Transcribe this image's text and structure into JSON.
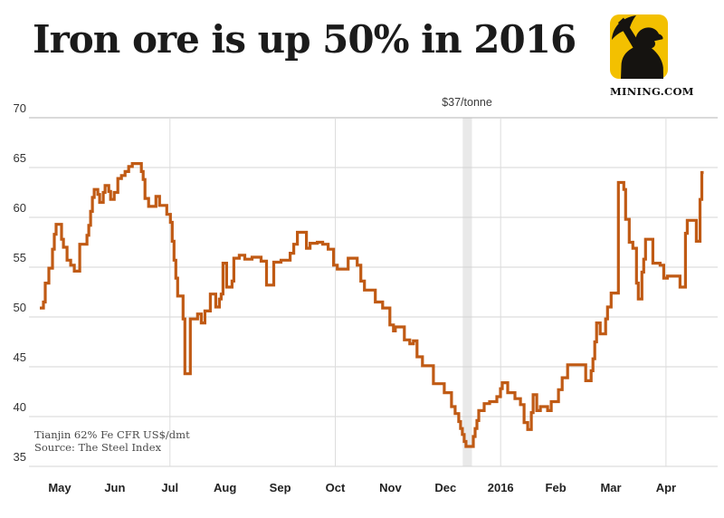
{
  "header": {
    "title": "Iron ore is up 50% in 2016",
    "logo_caption": "MINING.COM",
    "logo_bg_color": "#f3c000"
  },
  "chart_data": {
    "type": "line",
    "title": "Iron ore is up 50% in 2016",
    "series_name": "Tianjin 62% Fe CFR US$/dmt",
    "ylabel": "US$/dmt",
    "ylim": [
      35,
      70
    ],
    "y_ticks": [
      70,
      65,
      60,
      55,
      50,
      45,
      40,
      35
    ],
    "x_start_date": "2015-04-20",
    "x_tick_labels": [
      "May",
      "Jun",
      "Jul",
      "Aug",
      "Sep",
      "Oct",
      "Nov",
      "Dec",
      "2016",
      "Feb",
      "Mar",
      "Apr"
    ],
    "quarter_gridline_ticks": [
      "Jul",
      "Oct",
      "2016",
      "Apr"
    ],
    "grid": true,
    "legend": "none",
    "line_color": "#c05a14",
    "band_color": "#e9e9e9",
    "annotation": {
      "text": "$37/tonne",
      "low_value": 37,
      "band_days": [
        233.2,
        238.3
      ]
    },
    "source_lines": [
      "Tianjin 62% Fe CFR US$/dmt",
      "Source: The Steel Index"
    ],
    "points": [
      [
        0,
        50.9
      ],
      [
        2,
        51.5
      ],
      [
        3,
        53.4
      ],
      [
        5,
        54.9
      ],
      [
        7,
        56.8
      ],
      [
        8,
        58.3
      ],
      [
        9,
        59.3
      ],
      [
        12,
        57.8
      ],
      [
        13,
        57.0
      ],
      [
        15,
        55.7
      ],
      [
        17,
        55.2
      ],
      [
        19,
        54.6
      ],
      [
        22,
        57.3
      ],
      [
        26,
        58.2
      ],
      [
        27,
        59.2
      ],
      [
        28,
        60.6
      ],
      [
        29,
        62.0
      ],
      [
        30,
        62.8
      ],
      [
        32,
        62.3
      ],
      [
        33,
        61.5
      ],
      [
        35,
        62.5
      ],
      [
        36,
        63.2
      ],
      [
        38,
        62.6
      ],
      [
        39,
        61.8
      ],
      [
        41,
        62.5
      ],
      [
        43,
        63.9
      ],
      [
        45,
        64.2
      ],
      [
        47,
        64.6
      ],
      [
        49,
        65.1
      ],
      [
        51,
        65.4
      ],
      [
        56,
        64.6
      ],
      [
        57,
        63.8
      ],
      [
        58,
        61.9
      ],
      [
        60,
        61.1
      ],
      [
        64,
        62.1
      ],
      [
        66,
        61.2
      ],
      [
        70,
        60.3
      ],
      [
        72,
        59.5
      ],
      [
        73,
        57.6
      ],
      [
        74,
        55.7
      ],
      [
        75,
        53.9
      ],
      [
        76,
        52.1
      ],
      [
        79,
        49.8
      ],
      [
        80,
        44.3
      ],
      [
        83,
        49.8
      ],
      [
        87,
        50.3
      ],
      [
        89,
        49.4
      ],
      [
        91,
        50.6
      ],
      [
        94,
        52.3
      ],
      [
        97,
        51.0
      ],
      [
        99,
        51.8
      ],
      [
        100,
        52.3
      ],
      [
        101,
        55.4
      ],
      [
        103,
        53.0
      ],
      [
        106,
        53.6
      ],
      [
        107,
        55.9
      ],
      [
        110,
        56.2
      ],
      [
        113,
        55.8
      ],
      [
        117,
        56.0
      ],
      [
        122,
        55.6
      ],
      [
        125,
        53.2
      ],
      [
        129,
        55.5
      ],
      [
        133,
        55.7
      ],
      [
        138,
        56.4
      ],
      [
        140,
        57.3
      ],
      [
        142,
        58.5
      ],
      [
        147,
        56.9
      ],
      [
        149,
        57.4
      ],
      [
        153,
        57.5
      ],
      [
        156,
        57.3
      ],
      [
        159,
        56.8
      ],
      [
        162,
        55.2
      ],
      [
        164,
        54.8
      ],
      [
        170,
        55.9
      ],
      [
        175,
        55.2
      ],
      [
        177,
        53.6
      ],
      [
        179,
        52.7
      ],
      [
        185,
        51.5
      ],
      [
        189,
        50.9
      ],
      [
        193,
        49.2
      ],
      [
        195,
        48.6
      ],
      [
        196,
        49.0
      ],
      [
        201,
        47.7
      ],
      [
        204,
        47.3
      ],
      [
        206,
        47.6
      ],
      [
        208,
        46.0
      ],
      [
        211,
        45.1
      ],
      [
        217,
        43.3
      ],
      [
        223,
        42.4
      ],
      [
        227,
        41.0
      ],
      [
        229,
        40.3
      ],
      [
        231,
        39.5
      ],
      [
        232,
        38.8
      ],
      [
        233,
        38.2
      ],
      [
        234,
        37.5
      ],
      [
        235,
        37.0
      ],
      [
        239,
        38.0
      ],
      [
        240,
        38.8
      ],
      [
        241,
        39.6
      ],
      [
        242,
        40.6
      ],
      [
        245,
        41.3
      ],
      [
        248,
        41.5
      ],
      [
        252,
        42.0
      ],
      [
        254,
        42.8
      ],
      [
        255,
        43.4
      ],
      [
        258,
        42.4
      ],
      [
        262,
        41.8
      ],
      [
        265,
        41.2
      ],
      [
        267,
        39.4
      ],
      [
        269,
        38.7
      ],
      [
        271,
        40.4
      ],
      [
        272,
        42.2
      ],
      [
        274,
        40.6
      ],
      [
        276,
        41.0
      ],
      [
        280,
        40.6
      ],
      [
        282,
        41.5
      ],
      [
        286,
        42.7
      ],
      [
        288,
        43.9
      ],
      [
        291,
        45.2
      ],
      [
        301,
        43.6
      ],
      [
        304,
        44.6
      ],
      [
        305,
        45.8
      ],
      [
        306,
        47.5
      ],
      [
        307,
        49.4
      ],
      [
        309,
        48.3
      ],
      [
        312,
        49.8
      ],
      [
        313,
        51.0
      ],
      [
        315,
        52.4
      ],
      [
        319,
        63.5
      ],
      [
        322,
        62.8
      ],
      [
        323,
        59.8
      ],
      [
        325,
        57.5
      ],
      [
        327,
        56.9
      ],
      [
        329,
        53.4
      ],
      [
        330,
        51.8
      ],
      [
        332,
        54.5
      ],
      [
        333,
        55.8
      ],
      [
        334,
        57.8
      ],
      [
        338,
        55.4
      ],
      [
        342,
        55.2
      ],
      [
        344,
        53.9
      ],
      [
        346,
        54.1
      ],
      [
        353,
        53.0
      ],
      [
        356,
        58.4
      ],
      [
        357,
        59.7
      ],
      [
        362,
        57.6
      ],
      [
        364,
        61.8
      ],
      [
        365,
        64.5
      ],
      [
        366,
        64.5
      ]
    ]
  }
}
